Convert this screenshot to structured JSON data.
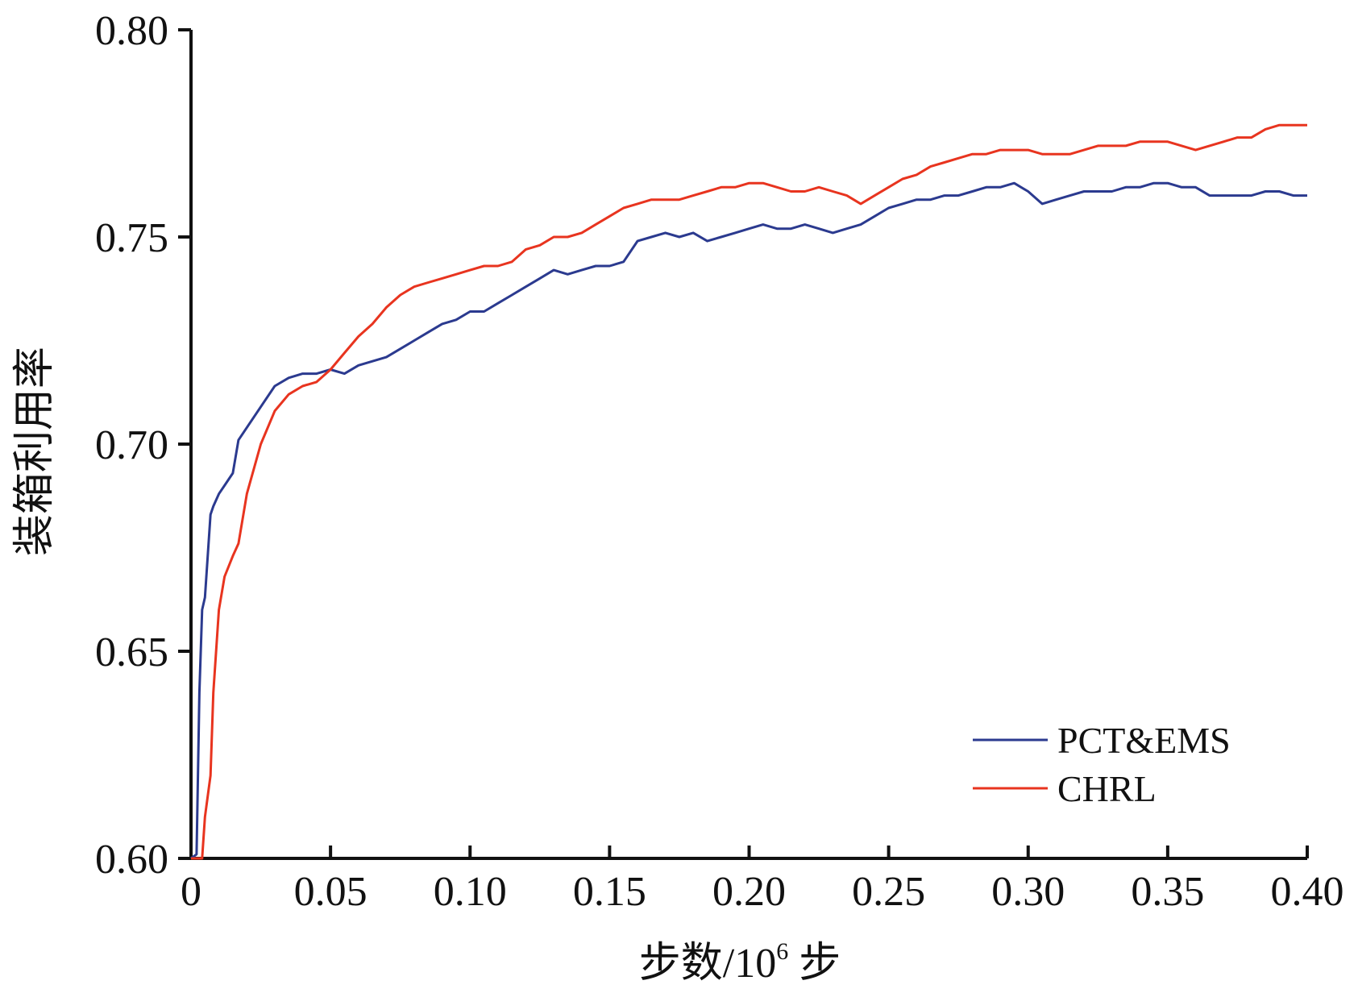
{
  "chart_data": {
    "type": "line",
    "xlabel_prefix": "步数/10",
    "xlabel_exponent": "6",
    "xlabel_suffix": " 步",
    "ylabel": "装箱利用率",
    "xlim": [
      0,
      0.4
    ],
    "ylim": [
      0.6,
      0.8
    ],
    "x_ticks": [
      "0",
      "0.05",
      "0.10",
      "0.15",
      "0.20",
      "0.25",
      "0.30",
      "0.35",
      "0.40"
    ],
    "x_tick_values": [
      0,
      0.05,
      0.1,
      0.15,
      0.2,
      0.25,
      0.3,
      0.35,
      0.4
    ],
    "y_ticks": [
      "0.60",
      "0.65",
      "0.70",
      "0.75",
      "0.80"
    ],
    "y_tick_values": [
      0.6,
      0.65,
      0.7,
      0.75,
      0.8
    ],
    "grid": false,
    "legend_position": "bottom-right",
    "series": [
      {
        "name": "PCT&EMS",
        "color": "#2b3a8f",
        "x": [
          0.0,
          0.002,
          0.003,
          0.004,
          0.005,
          0.007,
          0.008,
          0.01,
          0.012,
          0.015,
          0.017,
          0.02,
          0.025,
          0.03,
          0.035,
          0.04,
          0.045,
          0.05,
          0.055,
          0.06,
          0.065,
          0.07,
          0.075,
          0.08,
          0.085,
          0.09,
          0.095,
          0.1,
          0.105,
          0.11,
          0.115,
          0.12,
          0.125,
          0.13,
          0.135,
          0.14,
          0.145,
          0.15,
          0.155,
          0.16,
          0.165,
          0.17,
          0.175,
          0.18,
          0.185,
          0.19,
          0.195,
          0.2,
          0.205,
          0.21,
          0.215,
          0.22,
          0.225,
          0.23,
          0.235,
          0.24,
          0.245,
          0.25,
          0.255,
          0.26,
          0.265,
          0.27,
          0.275,
          0.28,
          0.285,
          0.29,
          0.295,
          0.3,
          0.305,
          0.31,
          0.315,
          0.32,
          0.325,
          0.33,
          0.335,
          0.34,
          0.345,
          0.35,
          0.355,
          0.36,
          0.365,
          0.37,
          0.375,
          0.38,
          0.385,
          0.39,
          0.395,
          0.4
        ],
        "values": [
          0.6,
          0.601,
          0.64,
          0.66,
          0.663,
          0.683,
          0.685,
          0.688,
          0.69,
          0.693,
          0.701,
          0.704,
          0.709,
          0.714,
          0.716,
          0.717,
          0.717,
          0.718,
          0.717,
          0.719,
          0.72,
          0.721,
          0.723,
          0.725,
          0.727,
          0.729,
          0.73,
          0.732,
          0.732,
          0.734,
          0.736,
          0.738,
          0.74,
          0.742,
          0.741,
          0.742,
          0.743,
          0.743,
          0.744,
          0.749,
          0.75,
          0.751,
          0.75,
          0.751,
          0.749,
          0.75,
          0.751,
          0.752,
          0.753,
          0.752,
          0.752,
          0.753,
          0.752,
          0.751,
          0.752,
          0.753,
          0.755,
          0.757,
          0.758,
          0.759,
          0.759,
          0.76,
          0.76,
          0.761,
          0.762,
          0.762,
          0.763,
          0.761,
          0.758,
          0.759,
          0.76,
          0.761,
          0.761,
          0.761,
          0.762,
          0.762,
          0.763,
          0.763,
          0.762,
          0.762,
          0.76,
          0.76,
          0.76,
          0.76,
          0.761,
          0.761,
          0.76,
          0.76
        ]
      },
      {
        "name": "CHRL",
        "color": "#e8341f",
        "x": [
          0.0,
          0.002,
          0.004,
          0.005,
          0.007,
          0.008,
          0.01,
          0.012,
          0.015,
          0.017,
          0.02,
          0.025,
          0.03,
          0.035,
          0.04,
          0.045,
          0.05,
          0.055,
          0.06,
          0.065,
          0.07,
          0.075,
          0.08,
          0.085,
          0.09,
          0.095,
          0.1,
          0.105,
          0.11,
          0.115,
          0.12,
          0.125,
          0.13,
          0.135,
          0.14,
          0.145,
          0.15,
          0.155,
          0.16,
          0.165,
          0.17,
          0.175,
          0.18,
          0.185,
          0.19,
          0.195,
          0.2,
          0.205,
          0.21,
          0.215,
          0.22,
          0.225,
          0.23,
          0.235,
          0.24,
          0.245,
          0.25,
          0.255,
          0.26,
          0.265,
          0.27,
          0.275,
          0.28,
          0.285,
          0.29,
          0.295,
          0.3,
          0.305,
          0.31,
          0.315,
          0.32,
          0.325,
          0.33,
          0.335,
          0.34,
          0.345,
          0.35,
          0.355,
          0.36,
          0.365,
          0.37,
          0.375,
          0.38,
          0.385,
          0.39,
          0.395,
          0.4
        ],
        "values": [
          0.6,
          0.6,
          0.6,
          0.61,
          0.62,
          0.64,
          0.66,
          0.668,
          0.673,
          0.676,
          0.688,
          0.7,
          0.708,
          0.712,
          0.714,
          0.715,
          0.718,
          0.722,
          0.726,
          0.729,
          0.733,
          0.736,
          0.738,
          0.739,
          0.74,
          0.741,
          0.742,
          0.743,
          0.743,
          0.744,
          0.747,
          0.748,
          0.75,
          0.75,
          0.751,
          0.753,
          0.755,
          0.757,
          0.758,
          0.759,
          0.759,
          0.759,
          0.76,
          0.761,
          0.762,
          0.762,
          0.763,
          0.763,
          0.762,
          0.761,
          0.761,
          0.762,
          0.761,
          0.76,
          0.758,
          0.76,
          0.762,
          0.764,
          0.765,
          0.767,
          0.768,
          0.769,
          0.77,
          0.77,
          0.771,
          0.771,
          0.771,
          0.77,
          0.77,
          0.77,
          0.771,
          0.772,
          0.772,
          0.772,
          0.773,
          0.773,
          0.773,
          0.772,
          0.771,
          0.772,
          0.773,
          0.774,
          0.774,
          0.776,
          0.777,
          0.777,
          0.777
        ]
      }
    ]
  }
}
